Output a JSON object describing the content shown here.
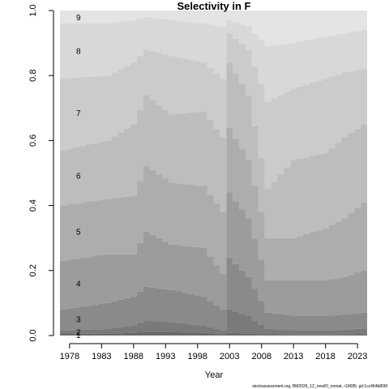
{
  "chart_data": {
    "type": "area",
    "title": "Selectivity in F",
    "xlabel": "Year",
    "ylabel": "",
    "xlim": [
      1976.5,
      2024.5
    ],
    "ylim": [
      0,
      1
    ],
    "x_ticks": [
      1978,
      1983,
      1988,
      1993,
      1998,
      2003,
      2008,
      2013,
      2018,
      2023
    ],
    "y_ticks": [
      "0.0",
      "0.2",
      "0.4",
      "0.6",
      "0.8",
      "1.0"
    ],
    "stacked": true,
    "series_labels": [
      "1",
      "2",
      "3",
      "4",
      "5",
      "6",
      "7",
      "8",
      "9"
    ],
    "series_colors": [
      "#6a6a6a",
      "#7a7a7a",
      "#8a8a8a",
      "#9c9c9c",
      "#adadad",
      "#bdbdbd",
      "#cbcbcb",
      "#d8d8d8",
      "#e4e4e4"
    ],
    "anchor_years": [
      1977,
      1984,
      1988,
      1990,
      1994,
      1999,
      2002,
      2003,
      2006,
      2009,
      2013,
      2018,
      2021,
      2024
    ],
    "cumulative_anchors": [
      [
        0.005,
        0.006,
        0.008,
        0.012,
        0.012,
        0.008,
        0.004,
        0.008,
        0.006,
        0.004,
        0.003,
        0.003,
        0.003,
        0.004
      ],
      [
        0.015,
        0.02,
        0.03,
        0.045,
        0.04,
        0.03,
        0.015,
        0.08,
        0.06,
        0.02,
        0.015,
        0.015,
        0.018,
        0.022
      ],
      [
        0.08,
        0.1,
        0.12,
        0.15,
        0.14,
        0.12,
        0.08,
        0.24,
        0.18,
        0.07,
        0.06,
        0.06,
        0.065,
        0.07
      ],
      [
        0.23,
        0.25,
        0.25,
        0.32,
        0.28,
        0.27,
        0.19,
        0.44,
        0.36,
        0.17,
        0.17,
        0.17,
        0.18,
        0.2
      ],
      [
        0.4,
        0.42,
        0.43,
        0.52,
        0.47,
        0.46,
        0.38,
        0.64,
        0.54,
        0.3,
        0.3,
        0.33,
        0.36,
        0.41
      ],
      [
        0.57,
        0.6,
        0.65,
        0.74,
        0.68,
        0.69,
        0.61,
        0.84,
        0.74,
        0.45,
        0.54,
        0.56,
        0.61,
        0.65
      ],
      [
        0.79,
        0.8,
        0.84,
        0.88,
        0.86,
        0.84,
        0.79,
        0.93,
        0.88,
        0.72,
        0.76,
        0.79,
        0.81,
        0.82
      ],
      [
        0.96,
        0.96,
        0.97,
        0.98,
        0.97,
        0.96,
        0.95,
        0.97,
        0.95,
        0.89,
        0.9,
        0.92,
        0.93,
        0.94
      ],
      [
        1.0,
        1.0,
        1.0,
        1.0,
        1.0,
        1.0,
        1.0,
        1.0,
        1.0,
        1.0,
        1.0,
        1.0,
        1.0,
        1.0
      ]
    ],
    "grid": false,
    "legend": "none"
  },
  "footer": "stockassessment.org, BM2026_12_newID_nomat, r19685, git:1cc464b806f"
}
